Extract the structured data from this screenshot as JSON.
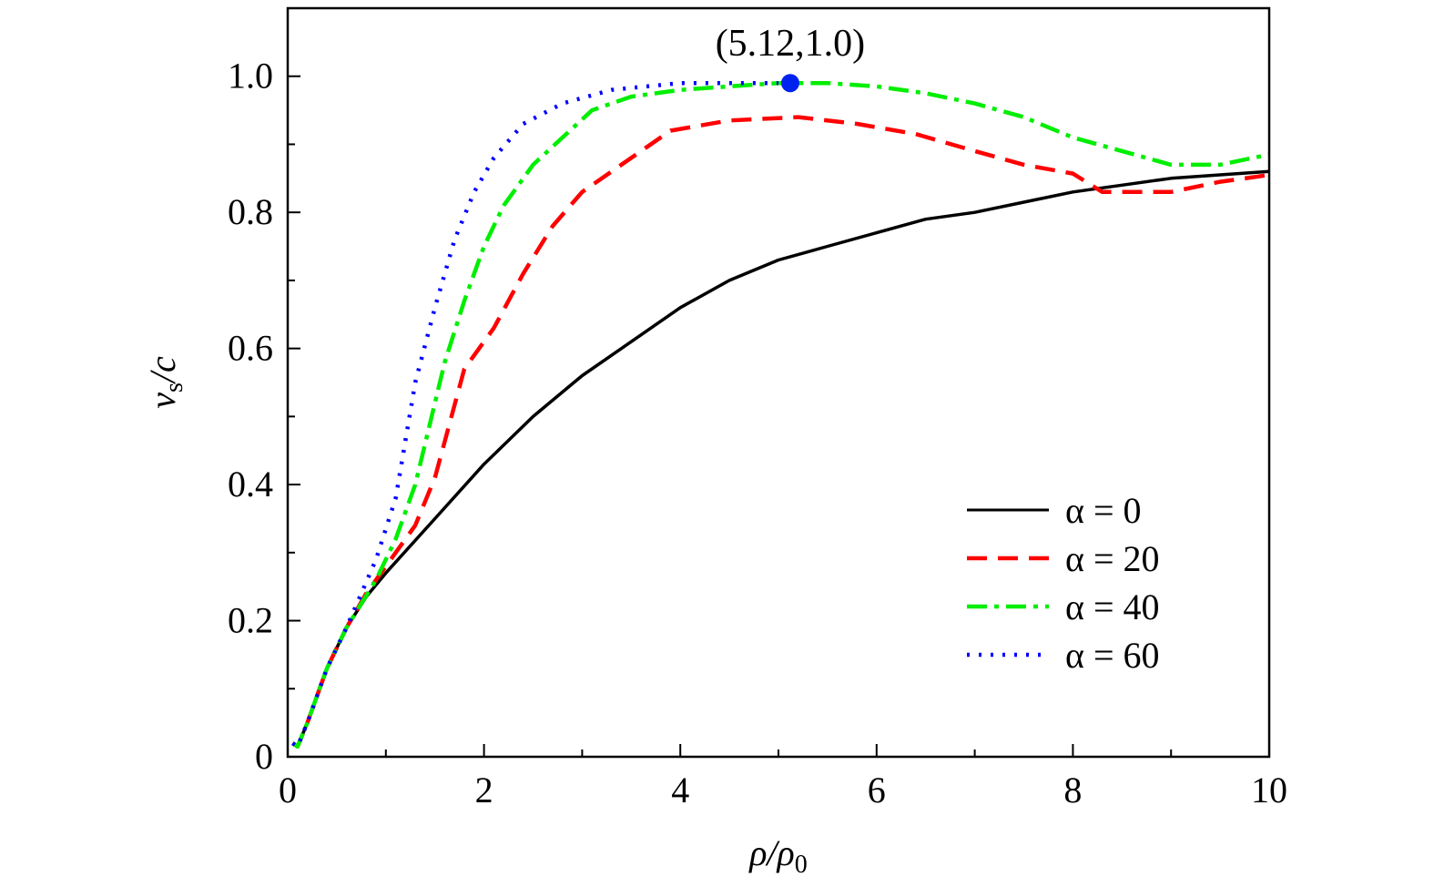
{
  "chart_data": {
    "type": "line",
    "title": "",
    "xlabel": "ρ/ρ0",
    "ylabel": "vs/c",
    "xlabel_parts": {
      "main": "ρ/ρ",
      "sub": "0"
    },
    "ylabel_parts": {
      "main": "v",
      "sub": "s",
      "rest": "/c"
    },
    "xlim": [
      0,
      10
    ],
    "ylim": [
      0,
      1.1
    ],
    "xticks": [
      0,
      2,
      4,
      6,
      8,
      10
    ],
    "xtick_labels": [
      "0",
      "2",
      "4",
      "6",
      "8",
      "10"
    ],
    "yticks": [
      0,
      0.2,
      0.4,
      0.6,
      0.8,
      1.0
    ],
    "ytick_labels": [
      "0",
      "0.2",
      "0.4",
      "0.6",
      "0.8",
      "1.0"
    ],
    "grid": false,
    "legend_position": "bottom-right",
    "series": [
      {
        "name": "α = 0",
        "color": "#000000",
        "dash": "solid",
        "x": [
          0.05,
          0.1,
          0.2,
          0.4,
          0.6,
          0.8,
          1,
          1.5,
          2,
          2.5,
          3,
          3.5,
          4,
          4.5,
          5,
          5.5,
          6,
          6.5,
          7,
          7.5,
          8,
          8.5,
          9,
          10
        ],
        "y": [
          0.02,
          0.015,
          0.05,
          0.13,
          0.19,
          0.235,
          0.27,
          0.35,
          0.43,
          0.5,
          0.56,
          0.61,
          0.66,
          0.7,
          0.73,
          0.75,
          0.77,
          0.79,
          0.8,
          0.815,
          0.83,
          0.84,
          0.85,
          0.86
        ]
      },
      {
        "name": "α = 20",
        "color": "#ff0000",
        "dash": "dashed",
        "x": [
          0.05,
          0.1,
          0.2,
          0.4,
          0.6,
          0.8,
          1,
          1.3,
          1.5,
          1.8,
          2.1,
          2.4,
          2.7,
          3,
          3.4,
          3.9,
          4.5,
          5.2,
          5.8,
          6.4,
          7,
          7.5,
          8,
          8.3,
          9,
          9.5,
          10
        ],
        "y": [
          0.02,
          0.015,
          0.05,
          0.13,
          0.19,
          0.24,
          0.28,
          0.34,
          0.41,
          0.57,
          0.63,
          0.71,
          0.78,
          0.83,
          0.87,
          0.92,
          0.935,
          0.94,
          0.93,
          0.915,
          0.89,
          0.87,
          0.857,
          0.83,
          0.83,
          0.845,
          0.855
        ]
      },
      {
        "name": "α = 40",
        "color": "#00ee00",
        "dash": "dashdot",
        "x": [
          0.05,
          0.1,
          0.2,
          0.4,
          0.6,
          0.9,
          1.1,
          1.3,
          1.4,
          1.6,
          1.8,
          2,
          2.2,
          2.5,
          2.8,
          3.1,
          3.5,
          4,
          4.5,
          5,
          5.5,
          6,
          6.5,
          7,
          7.5,
          8,
          8.5,
          9,
          9.5,
          10
        ],
        "y": [
          0.02,
          0.015,
          0.05,
          0.13,
          0.19,
          0.26,
          0.32,
          0.4,
          0.46,
          0.58,
          0.67,
          0.75,
          0.81,
          0.87,
          0.91,
          0.95,
          0.97,
          0.98,
          0.985,
          0.99,
          0.99,
          0.985,
          0.975,
          0.96,
          0.94,
          0.91,
          0.89,
          0.87,
          0.87,
          0.885
        ]
      },
      {
        "name": "α = 60",
        "color": "#0000ff",
        "dash": "dotted",
        "x": [
          0.05,
          0.1,
          0.2,
          0.4,
          0.6,
          0.9,
          1.1,
          1.3,
          1.5,
          1.7,
          1.9,
          2.1,
          2.4,
          2.8,
          3.3,
          4,
          5
        ],
        "y": [
          0.02,
          0.015,
          0.05,
          0.13,
          0.19,
          0.29,
          0.38,
          0.55,
          0.66,
          0.76,
          0.83,
          0.88,
          0.93,
          0.96,
          0.98,
          0.99,
          0.99
        ]
      }
    ],
    "annotations": [
      {
        "text": "(5.12,1.0)",
        "x": 5.12,
        "y": 0.99,
        "marker_color": "#0022ee"
      }
    ]
  }
}
